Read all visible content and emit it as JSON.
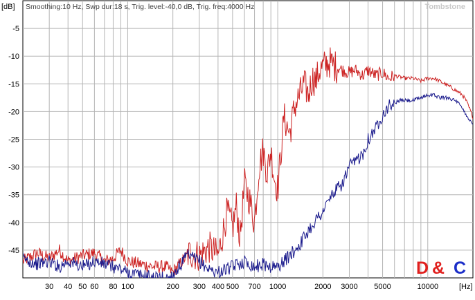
{
  "header": {
    "unit_label": "[dB]",
    "settings_text": "Smoothing:10 Hz, Swp dur:18 s, Trig. level:-40,0 dB, Trig. freq:4000 Hz",
    "watermark": "Tombstone"
  },
  "brand": {
    "d": "D",
    "amp": "&",
    "c": "C",
    "d_color": "#e0201e",
    "amp_color": "#e0201e",
    "c_color": "#1b2ec8"
  },
  "chart_data": {
    "type": "line",
    "title": "",
    "xlabel": "[Hz]",
    "ylabel": "[dB]",
    "x_scale": "log",
    "xlim": [
      20,
      20000
    ],
    "ylim": [
      -50,
      0
    ],
    "grid": true,
    "x_tick_labels": [
      "30",
      "40",
      "50",
      "60",
      "80",
      "100",
      "200",
      "300",
      "400",
      "500",
      "700",
      "1000",
      "2000",
      "3000",
      "5000",
      "10000"
    ],
    "x_tick_values": [
      30,
      40,
      50,
      60,
      80,
      100,
      200,
      300,
      400,
      500,
      700,
      1000,
      2000,
      3000,
      5000,
      10000
    ],
    "y_tick_labels": [
      "-5",
      "-10",
      "-15",
      "-20",
      "-25",
      "-30",
      "-35",
      "-40",
      "-45"
    ],
    "y_tick_values": [
      -5,
      -10,
      -15,
      -20,
      -25,
      -30,
      -35,
      -40,
      -45
    ],
    "series": [
      {
        "color": "#cc2222",
        "x": [
          20,
          25,
          30,
          35,
          40,
          50,
          60,
          70,
          80,
          90,
          100,
          120,
          150,
          180,
          200,
          230,
          260,
          300,
          350,
          400,
          430,
          460,
          500,
          530,
          560,
          600,
          650,
          700,
          750,
          800,
          850,
          900,
          950,
          1000,
          1100,
          1200,
          1300,
          1400,
          1500,
          1600,
          1700,
          1800,
          1900,
          2000,
          2200,
          2300,
          2500,
          2700,
          3000,
          3300,
          3700,
          4000,
          4500,
          5000,
          5500,
          6000,
          7000,
          8000,
          9000,
          10000,
          11000,
          12000,
          13000,
          14000,
          15000,
          16000,
          17000,
          18000,
          19000,
          20000
        ],
        "y": [
          -47,
          -45.5,
          -46.5,
          -45,
          -47,
          -46,
          -45.5,
          -47,
          -46.5,
          -45,
          -47,
          -47.5,
          -48,
          -48,
          -49,
          -47,
          -45.5,
          -46,
          -44.5,
          -46,
          -42,
          -38,
          -41,
          -37,
          -43,
          -33,
          -36,
          -40,
          -30,
          -27,
          -31,
          -27,
          -32,
          -34,
          -21,
          -24,
          -19,
          -17,
          -15,
          -17,
          -14,
          -14.5,
          -12.5,
          -12,
          -11,
          -11.5,
          -12,
          -12.5,
          -13,
          -12.5,
          -13.5,
          -12.5,
          -13.5,
          -13,
          -14,
          -13.5,
          -14,
          -14,
          -14.5,
          -14,
          -14,
          -14.5,
          -15,
          -15.5,
          -16,
          -16.5,
          -17,
          -18,
          -19.5,
          -21
        ]
      },
      {
        "color": "#1a1a8c",
        "x": [
          20,
          25,
          30,
          35,
          40,
          50,
          60,
          70,
          80,
          90,
          100,
          120,
          150,
          180,
          200,
          250,
          300,
          350,
          400,
          500,
          600,
          700,
          800,
          900,
          1000,
          1100,
          1200,
          1400,
          1600,
          1800,
          2000,
          2300,
          2700,
          3000,
          3300,
          3700,
          4000,
          4500,
          5000,
          5500,
          6000,
          6500,
          7000,
          8000,
          9000,
          10000,
          11000,
          12000,
          13000,
          14000,
          15000,
          16000,
          17000,
          18000,
          19000,
          20000
        ],
        "y": [
          -46.5,
          -47.5,
          -47,
          -48,
          -47,
          -48,
          -47,
          -47.5,
          -48,
          -48.5,
          -49,
          -49.5,
          -50,
          -50,
          -49.5,
          -46,
          -47,
          -48.5,
          -49,
          -48,
          -47,
          -48,
          -47.5,
          -48,
          -48,
          -47,
          -46,
          -44,
          -41.5,
          -39.5,
          -38,
          -35,
          -33,
          -30,
          -29,
          -27.5,
          -25,
          -23,
          -20.5,
          -19,
          -18.5,
          -18,
          -18,
          -18,
          -17.5,
          -17,
          -17,
          -17.5,
          -17.5,
          -17.5,
          -18,
          -18.5,
          -19.5,
          -20.5,
          -21.5,
          -22.5
        ]
      }
    ]
  }
}
